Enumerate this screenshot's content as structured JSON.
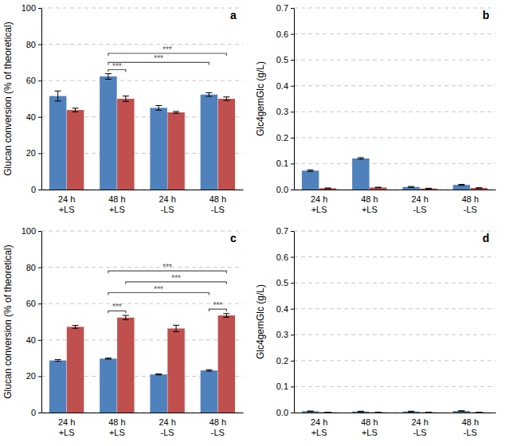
{
  "chart_data": [
    {
      "type": "bar",
      "title": "a",
      "ylabel": "Glucan conversion (% of theoretical)",
      "categories": [
        "24 h\n+LS",
        "48 h\n+LS",
        "24 h\n-LS",
        "48 h\n-LS"
      ],
      "series": [
        {
          "color": "#4f81bd",
          "values": [
            51.5,
            62.3,
            45.0,
            52.3
          ],
          "errors": [
            2.8,
            1.5,
            1.3,
            1.0
          ]
        },
        {
          "color": "#c0504d",
          "values": [
            43.8,
            50.0,
            42.5,
            50.0
          ],
          "errors": [
            1.0,
            1.5,
            0.5,
            1.0
          ]
        }
      ],
      "ylim": [
        0,
        100
      ],
      "yticks": [
        0,
        20,
        40,
        60,
        80,
        100
      ],
      "grid": true,
      "annotations": [
        {
          "text": "***",
          "from": {
            "series": 0,
            "category": 1
          },
          "to": {
            "series": 1,
            "category": 1
          },
          "y": 66
        },
        {
          "text": "***",
          "from": {
            "series": 0,
            "category": 1
          },
          "to": {
            "series": 0,
            "category": 3
          },
          "y": 70
        },
        {
          "text": "***",
          "from": {
            "series": 0,
            "category": 1
          },
          "to": {
            "series": 1,
            "category": 3
          },
          "y": 75
        }
      ]
    },
    {
      "type": "bar",
      "title": "b",
      "ylabel": "Glc4gemGlc (g/L)",
      "categories": [
        "24 h\n+LS",
        "48 h\n+LS",
        "24 h\n-LS",
        "48 h\n-LS"
      ],
      "series": [
        {
          "color": "#4f81bd",
          "values": [
            0.073,
            0.12,
            0.01,
            0.018
          ],
          "errors": [
            0.003,
            0.003,
            0.002,
            0.002
          ]
        },
        {
          "color": "#c0504d",
          "values": [
            0.005,
            0.008,
            0.004,
            0.006
          ],
          "errors": [
            0.001,
            0.001,
            0.001,
            0.001
          ]
        }
      ],
      "ylim": [
        0,
        0.7
      ],
      "yticks": [
        {
          "value": 0,
          "label": "0.0"
        },
        {
          "value": 0.1,
          "label": "0.1"
        },
        {
          "value": 0.2,
          "label": "0.2"
        },
        {
          "value": 0.3,
          "label": "0.3"
        },
        {
          "value": 0.4,
          "label": "0.4"
        },
        {
          "value": 0.5,
          "label": "0.5"
        },
        {
          "value": 0.6,
          "label": "0.6"
        },
        {
          "value": 0.7,
          "label": "0.7"
        }
      ],
      "grid": true
    },
    {
      "type": "bar",
      "title": "c",
      "ylabel": "Glucan conversion (% of theoretical)",
      "categories": [
        "24 h\n+LS",
        "48 h\n+LS",
        "24 h\n-LS",
        "48 h\n-LS"
      ],
      "series": [
        {
          "color": "#4f81bd",
          "values": [
            28.7,
            29.7,
            21.0,
            23.2
          ],
          "errors": [
            0.5,
            0.3,
            0.3,
            0.4
          ]
        },
        {
          "color": "#c0504d",
          "values": [
            47.2,
            52.3,
            46.3,
            53.5
          ],
          "errors": [
            0.8,
            1.2,
            1.8,
            1.0
          ]
        }
      ],
      "ylim": [
        0,
        100
      ],
      "yticks": [
        0,
        20,
        40,
        60,
        80,
        100
      ],
      "grid": true,
      "annotations": [
        {
          "text": "***",
          "from": {
            "series": 0,
            "category": 1
          },
          "to": {
            "series": 1,
            "category": 1
          },
          "y": 56
        },
        {
          "text": "***",
          "from": {
            "series": 0,
            "category": 3
          },
          "to": {
            "series": 1,
            "category": 3
          },
          "y": 57
        },
        {
          "text": "***",
          "from": {
            "series": 0,
            "category": 1
          },
          "to": {
            "series": 0,
            "category": 3
          },
          "y": 66
        },
        {
          "text": "***",
          "from": {
            "series": 1,
            "category": 1
          },
          "to": {
            "series": 1,
            "category": 3
          },
          "y": 72
        },
        {
          "text": "***",
          "from": {
            "series": 0,
            "category": 1
          },
          "to": {
            "series": 1,
            "category": 3
          },
          "y": 78
        }
      ]
    },
    {
      "type": "bar",
      "title": "d",
      "ylabel": "Glc4gemGlc (g/L)",
      "categories": [
        "24 h\n+LS",
        "48 h\n+LS",
        "24 h\n-LS",
        "48 h\n-LS"
      ],
      "series": [
        {
          "color": "#4f81bd",
          "values": [
            0.005,
            0.004,
            0.004,
            0.006
          ],
          "errors": [
            0.001,
            0.001,
            0.001,
            0.001
          ]
        },
        {
          "color": "#c0504d",
          "values": [
            0.001,
            0.001,
            0.001,
            0.001
          ],
          "errors": [
            0.0005,
            0.0005,
            0.0005,
            0.0005
          ]
        }
      ],
      "ylim": [
        0,
        0.7
      ],
      "yticks": [
        {
          "value": 0,
          "label": "0.0"
        },
        {
          "value": 0.1,
          "label": "0.1"
        },
        {
          "value": 0.2,
          "label": "0.2"
        },
        {
          "value": 0.3,
          "label": "0.3"
        },
        {
          "value": 0.4,
          "label": "0.4"
        },
        {
          "value": 0.5,
          "label": "0.5"
        },
        {
          "value": 0.6,
          "label": "0.6"
        },
        {
          "value": 0.7,
          "label": "0.7"
        }
      ],
      "grid": true
    }
  ]
}
